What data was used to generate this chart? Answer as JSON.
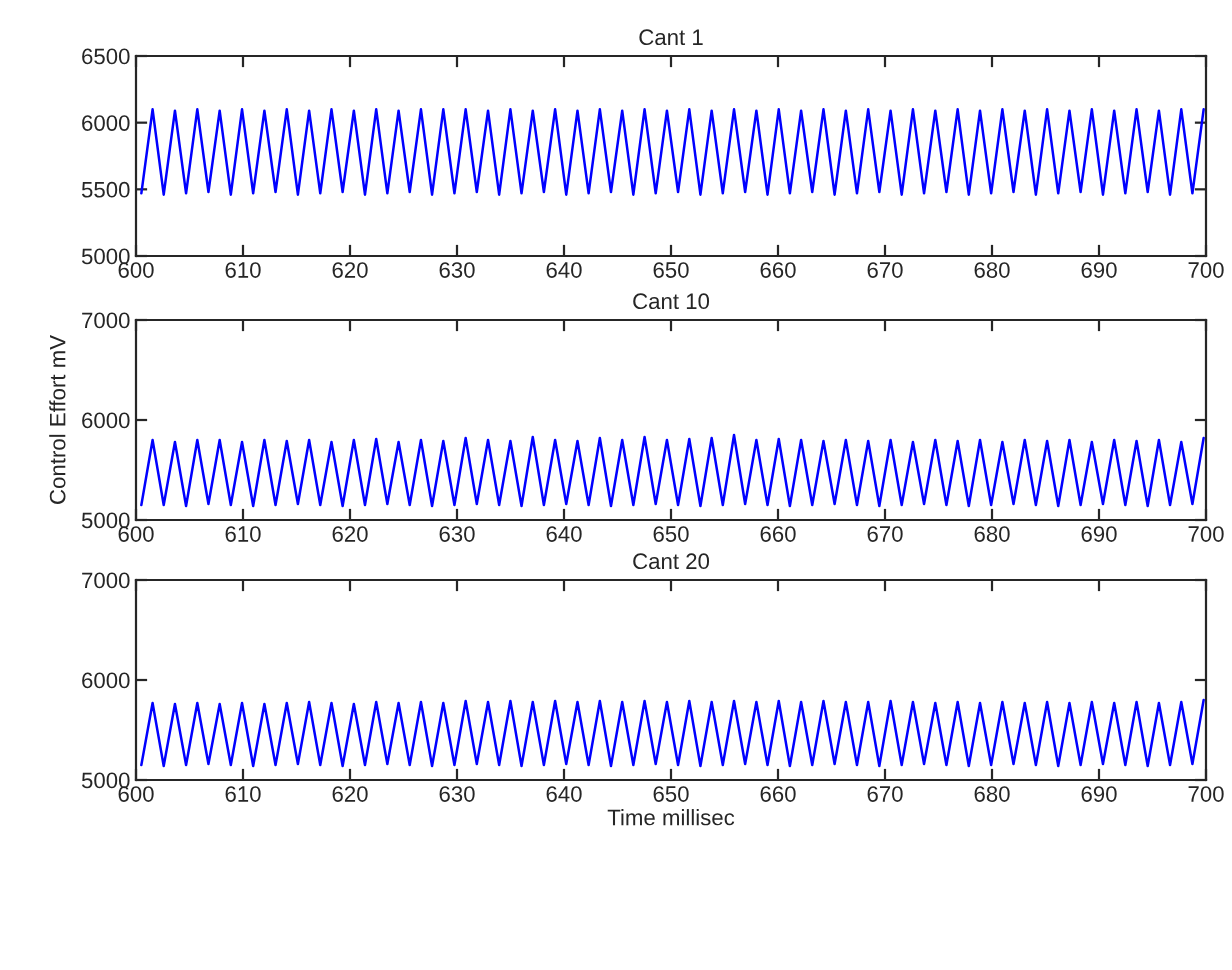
{
  "chart_data": [
    {
      "type": "line",
      "title": "Cant 1",
      "xlim": [
        600,
        700
      ],
      "xticks": [
        600,
        610,
        620,
        630,
        640,
        650,
        660,
        670,
        680,
        690,
        700
      ],
      "ylim": [
        5000,
        6500
      ],
      "yticks": [
        5000,
        5500,
        6000,
        6500
      ],
      "x": [
        600.5,
        601.55,
        602.59,
        603.64,
        604.68,
        605.73,
        606.77,
        607.82,
        608.86,
        609.91,
        610.95,
        612.0,
        613.04,
        614.09,
        615.13,
        616.18,
        617.22,
        618.27,
        619.31,
        620.36,
        621.4,
        622.45,
        623.49,
        624.54,
        625.58,
        626.63,
        627.67,
        628.72,
        629.76,
        630.81,
        631.85,
        632.9,
        633.94,
        634.99,
        636.03,
        637.08,
        638.12,
        639.17,
        640.21,
        641.26,
        642.3,
        643.35,
        644.39,
        645.44,
        646.48,
        647.53,
        648.57,
        649.62,
        650.66,
        651.71,
        652.75,
        653.8,
        654.84,
        655.89,
        656.93,
        657.98,
        659.02,
        660.07,
        661.11,
        662.16,
        663.2,
        664.25,
        665.29,
        666.34,
        667.38,
        668.43,
        669.47,
        670.52,
        671.56,
        672.61,
        673.65,
        674.7,
        675.74,
        676.79,
        677.83,
        678.88,
        679.92,
        680.97,
        682.01,
        683.06,
        684.1,
        685.15,
        686.19,
        687.24,
        688.28,
        689.33,
        690.37,
        691.42,
        692.46,
        693.51,
        694.55,
        695.6,
        696.64,
        697.69,
        698.73,
        699.78
      ],
      "series": [
        {
          "color": "#0000ff",
          "values": [
            5470,
            6100,
            5460,
            6090,
            5470,
            6100,
            5480,
            6090,
            5460,
            6100,
            5470,
            6090,
            5480,
            6100,
            5460,
            6090,
            5470,
            6100,
            5480,
            6090,
            5460,
            6100,
            5470,
            6090,
            5480,
            6100,
            5460,
            6100,
            5470,
            6100,
            5480,
            6090,
            5460,
            6100,
            5470,
            6090,
            5480,
            6100,
            5460,
            6090,
            5470,
            6100,
            5480,
            6090,
            5460,
            6100,
            5470,
            6090,
            5480,
            6100,
            5460,
            6090,
            5470,
            6100,
            5480,
            6090,
            5460,
            6100,
            5470,
            6090,
            5480,
            6100,
            5460,
            6090,
            5470,
            6100,
            5480,
            6090,
            5460,
            6100,
            5470,
            6090,
            5480,
            6100,
            5460,
            6090,
            5470,
            6100,
            5480,
            6090,
            5460,
            6100,
            5470,
            6090,
            5480,
            6100,
            5460,
            6090,
            5470,
            6100,
            5480,
            6090,
            5460,
            6100,
            5470,
            6100
          ]
        }
      ]
    },
    {
      "type": "line",
      "title": "Cant 10",
      "ylabel": "Control Effort mV",
      "xlim": [
        600,
        700
      ],
      "xticks": [
        600,
        610,
        620,
        630,
        640,
        650,
        660,
        670,
        680,
        690,
        700
      ],
      "ylim": [
        5000,
        7000
      ],
      "yticks": [
        5000,
        6000,
        7000
      ],
      "x": [
        600.5,
        601.55,
        602.59,
        603.64,
        604.68,
        605.73,
        606.77,
        607.82,
        608.86,
        609.91,
        610.95,
        612.0,
        613.04,
        614.09,
        615.13,
        616.18,
        617.22,
        618.27,
        619.31,
        620.36,
        621.4,
        622.45,
        623.49,
        624.54,
        625.58,
        626.63,
        627.67,
        628.72,
        629.76,
        630.81,
        631.85,
        632.9,
        633.94,
        634.99,
        636.03,
        637.08,
        638.12,
        639.17,
        640.21,
        641.26,
        642.3,
        643.35,
        644.39,
        645.44,
        646.48,
        647.53,
        648.57,
        649.62,
        650.66,
        651.71,
        652.75,
        653.8,
        654.84,
        655.89,
        656.93,
        657.98,
        659.02,
        660.07,
        661.11,
        662.16,
        663.2,
        664.25,
        665.29,
        666.34,
        667.38,
        668.43,
        669.47,
        670.52,
        671.56,
        672.61,
        673.65,
        674.7,
        675.74,
        676.79,
        677.83,
        678.88,
        679.92,
        680.97,
        682.01,
        683.06,
        684.1,
        685.15,
        686.19,
        687.24,
        688.28,
        689.33,
        690.37,
        691.42,
        692.46,
        693.51,
        694.55,
        695.6,
        696.64,
        697.69,
        698.73,
        699.78
      ],
      "series": [
        {
          "color": "#0000ff",
          "values": [
            5150,
            5800,
            5150,
            5780,
            5140,
            5800,
            5160,
            5800,
            5150,
            5780,
            5140,
            5800,
            5150,
            5790,
            5160,
            5800,
            5150,
            5780,
            5140,
            5800,
            5150,
            5810,
            5160,
            5780,
            5150,
            5800,
            5140,
            5790,
            5150,
            5820,
            5160,
            5800,
            5150,
            5790,
            5140,
            5830,
            5150,
            5800,
            5160,
            5790,
            5150,
            5820,
            5140,
            5800,
            5150,
            5830,
            5160,
            5800,
            5150,
            5810,
            5140,
            5820,
            5150,
            5850,
            5160,
            5800,
            5150,
            5810,
            5140,
            5800,
            5150,
            5790,
            5160,
            5800,
            5150,
            5790,
            5140,
            5800,
            5150,
            5780,
            5160,
            5800,
            5150,
            5790,
            5140,
            5800,
            5150,
            5780,
            5160,
            5800,
            5150,
            5790,
            5140,
            5800,
            5150,
            5780,
            5160,
            5800,
            5150,
            5790,
            5140,
            5800,
            5150,
            5780,
            5160,
            5820
          ]
        }
      ]
    },
    {
      "type": "line",
      "title": "Cant 20",
      "xlabel": "Time millisec",
      "xlim": [
        600,
        700
      ],
      "xticks": [
        600,
        610,
        620,
        630,
        640,
        650,
        660,
        670,
        680,
        690,
        700
      ],
      "ylim": [
        5000,
        7000
      ],
      "yticks": [
        5000,
        6000,
        7000
      ],
      "x": [
        600.5,
        601.55,
        602.59,
        603.64,
        604.68,
        605.73,
        606.77,
        607.82,
        608.86,
        609.91,
        610.95,
        612.0,
        613.04,
        614.09,
        615.13,
        616.18,
        617.22,
        618.27,
        619.31,
        620.36,
        621.4,
        622.45,
        623.49,
        624.54,
        625.58,
        626.63,
        627.67,
        628.72,
        629.76,
        630.81,
        631.85,
        632.9,
        633.94,
        634.99,
        636.03,
        637.08,
        638.12,
        639.17,
        640.21,
        641.26,
        642.3,
        643.35,
        644.39,
        645.44,
        646.48,
        647.53,
        648.57,
        649.62,
        650.66,
        651.71,
        652.75,
        653.8,
        654.84,
        655.89,
        656.93,
        657.98,
        659.02,
        660.07,
        661.11,
        662.16,
        663.2,
        664.25,
        665.29,
        666.34,
        667.38,
        668.43,
        669.47,
        670.52,
        671.56,
        672.61,
        673.65,
        674.7,
        675.74,
        676.79,
        677.83,
        678.88,
        679.92,
        680.97,
        682.01,
        683.06,
        684.1,
        685.15,
        686.19,
        687.24,
        688.28,
        689.33,
        690.37,
        691.42,
        692.46,
        693.51,
        694.55,
        695.6,
        696.64,
        697.69,
        698.73,
        699.78
      ],
      "series": [
        {
          "color": "#0000ff",
          "values": [
            5150,
            5770,
            5140,
            5760,
            5150,
            5770,
            5160,
            5760,
            5150,
            5770,
            5140,
            5760,
            5150,
            5770,
            5160,
            5780,
            5150,
            5770,
            5140,
            5760,
            5150,
            5780,
            5160,
            5770,
            5150,
            5780,
            5140,
            5770,
            5150,
            5790,
            5160,
            5780,
            5150,
            5790,
            5140,
            5780,
            5150,
            5790,
            5160,
            5780,
            5150,
            5790,
            5140,
            5780,
            5150,
            5790,
            5160,
            5780,
            5150,
            5790,
            5140,
            5780,
            5150,
            5790,
            5160,
            5780,
            5150,
            5790,
            5140,
            5780,
            5150,
            5790,
            5160,
            5780,
            5150,
            5780,
            5140,
            5790,
            5150,
            5780,
            5160,
            5770,
            5150,
            5780,
            5140,
            5770,
            5150,
            5780,
            5160,
            5770,
            5150,
            5780,
            5140,
            5770,
            5150,
            5780,
            5160,
            5770,
            5150,
            5780,
            5140,
            5770,
            5150,
            5780,
            5160,
            5800
          ]
        }
      ]
    }
  ]
}
